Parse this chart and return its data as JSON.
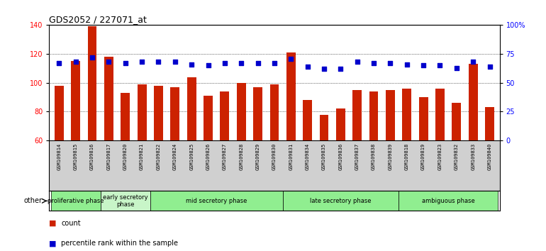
{
  "title": "GDS2052 / 227071_at",
  "samples": [
    "GSM109814",
    "GSM109815",
    "GSM109816",
    "GSM109817",
    "GSM109820",
    "GSM109821",
    "GSM109822",
    "GSM109824",
    "GSM109825",
    "GSM109826",
    "GSM109827",
    "GSM109828",
    "GSM109829",
    "GSM109830",
    "GSM109831",
    "GSM109834",
    "GSM109835",
    "GSM109836",
    "GSM109837",
    "GSM109838",
    "GSM109839",
    "GSM109818",
    "GSM109819",
    "GSM109823",
    "GSM109832",
    "GSM109833",
    "GSM109840"
  ],
  "counts": [
    98,
    115,
    139,
    118,
    93,
    99,
    98,
    97,
    104,
    91,
    94,
    100,
    97,
    99,
    121,
    88,
    78,
    82,
    95,
    94,
    95,
    96,
    90,
    96,
    86,
    113,
    83
  ],
  "percentiles": [
    67,
    68,
    72,
    68,
    67,
    68,
    68,
    68,
    66,
    65,
    67,
    67,
    67,
    67,
    71,
    64,
    62,
    62,
    68,
    67,
    67,
    66,
    65,
    65,
    63,
    68,
    64
  ],
  "ymin": 60,
  "ymax": 140,
  "yticks_left": [
    60,
    80,
    100,
    120,
    140
  ],
  "yticks_right": [
    0,
    25,
    50,
    75,
    100
  ],
  "bar_color": "#cc2200",
  "dot_color": "#0000cc",
  "phase_groups": [
    {
      "label": "proliferative phase",
      "start": 0,
      "end": 3,
      "color": "#90ee90"
    },
    {
      "label": "early secretory\nphase",
      "start": 3,
      "end": 6,
      "color": "#c8f5c8"
    },
    {
      "label": "mid secretory phase",
      "start": 6,
      "end": 14,
      "color": "#90ee90"
    },
    {
      "label": "late secretory phase",
      "start": 14,
      "end": 21,
      "color": "#90ee90"
    },
    {
      "label": "ambiguous phase",
      "start": 21,
      "end": 27,
      "color": "#90ee90"
    }
  ],
  "legend_count_label": "count",
  "legend_pct_label": "percentile rank within the sample",
  "other_label": "other",
  "xtick_bg": "#d0d0d0",
  "plot_bg": "#ffffff"
}
